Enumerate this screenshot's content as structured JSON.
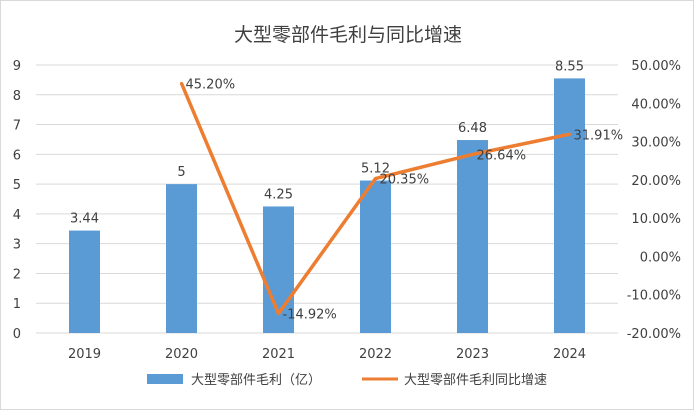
{
  "chart_data": {
    "type": "bar",
    "title": "大型零部件毛利与同比增速",
    "categories": [
      "2019",
      "2020",
      "2021",
      "2022",
      "2023",
      "2024"
    ],
    "series": [
      {
        "name": "大型零部件毛利（亿）",
        "type": "bar",
        "axis": "left",
        "values": [
          3.44,
          5,
          4.25,
          5.12,
          6.48,
          8.55
        ],
        "labels": [
          "3.44",
          "5",
          "4.25",
          "5.12",
          "6.48",
          "8.55"
        ],
        "color": "#5b9bd5"
      },
      {
        "name": "大型零部件毛利同比增速",
        "type": "line",
        "axis": "right",
        "values": [
          null,
          45.2,
          -14.92,
          20.35,
          26.64,
          31.91
        ],
        "labels": [
          "",
          "45.20%",
          "-14.92%",
          "20.35%",
          "26.64%",
          "31.91%"
        ],
        "color": "#ed7d31"
      }
    ],
    "y_left": {
      "min": 0,
      "max": 9,
      "step": 1,
      "ticks": [
        "0",
        "1",
        "2",
        "3",
        "4",
        "5",
        "6",
        "7",
        "8",
        "9"
      ]
    },
    "y_right": {
      "min": -20,
      "max": 50,
      "step": 10,
      "ticks": [
        "-20.00%",
        "-10.00%",
        "0.00%",
        "10.00%",
        "20.00%",
        "30.00%",
        "40.00%",
        "50.00%"
      ]
    },
    "grid": true,
    "legend_position": "bottom"
  }
}
